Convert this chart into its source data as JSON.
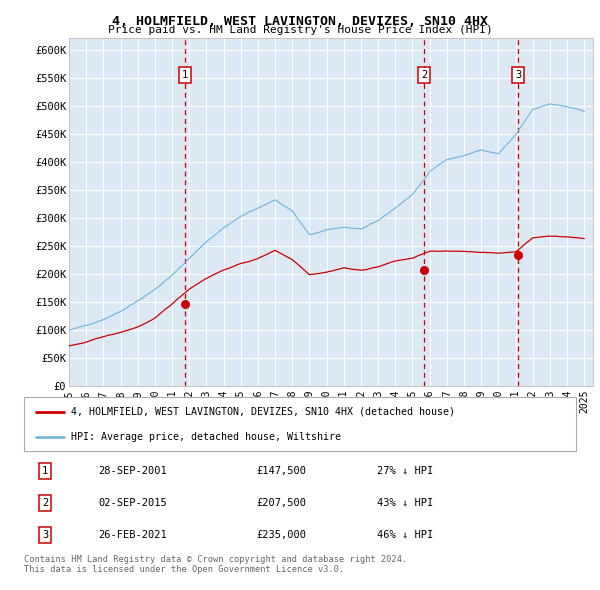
{
  "title1": "4, HOLMFIELD, WEST LAVINGTON, DEVIZES, SN10 4HX",
  "title2": "Price paid vs. HM Land Registry's House Price Index (HPI)",
  "bg_color": "#dce9f5",
  "red_line_label": "4, HOLMFIELD, WEST LAVINGTON, DEVIZES, SN10 4HX (detached house)",
  "blue_line_label": "HPI: Average price, detached house, Wiltshire",
  "sale_points": [
    {
      "label": "1",
      "date_x": 2001.75,
      "price": 147500,
      "date_str": "28-SEP-2001",
      "price_str": "£147,500",
      "pct_str": "27% ↓ HPI"
    },
    {
      "label": "2",
      "date_x": 2015.67,
      "price": 207500,
      "date_str": "02-SEP-2015",
      "price_str": "£207,500",
      "pct_str": "43% ↓ HPI"
    },
    {
      "label": "3",
      "date_x": 2021.15,
      "price": 235000,
      "date_str": "26-FEB-2021",
      "price_str": "£235,000",
      "pct_str": "46% ↓ HPI"
    }
  ],
  "footer1": "Contains HM Land Registry data © Crown copyright and database right 2024.",
  "footer2": "This data is licensed under the Open Government Licence v3.0.",
  "xlim": [
    1995,
    2025.5
  ],
  "ylim": [
    0,
    620000
  ],
  "yticks": [
    0,
    50000,
    100000,
    150000,
    200000,
    250000,
    300000,
    350000,
    400000,
    450000,
    500000,
    550000,
    600000
  ],
  "ytick_labels": [
    "£0",
    "£50K",
    "£100K",
    "£150K",
    "£200K",
    "£250K",
    "£300K",
    "£350K",
    "£400K",
    "£450K",
    "£500K",
    "£550K",
    "£600K"
  ],
  "xticks": [
    1995,
    1996,
    1997,
    1998,
    1999,
    2000,
    2001,
    2002,
    2003,
    2004,
    2005,
    2006,
    2007,
    2008,
    2009,
    2010,
    2011,
    2012,
    2013,
    2014,
    2015,
    2016,
    2017,
    2018,
    2019,
    2020,
    2021,
    2022,
    2023,
    2024,
    2025
  ],
  "hpi_base": [
    100000,
    108000,
    120000,
    135000,
    155000,
    175000,
    200000,
    230000,
    260000,
    285000,
    305000,
    320000,
    335000,
    315000,
    272000,
    280000,
    285000,
    282000,
    295000,
    318000,
    342000,
    382000,
    405000,
    412000,
    422000,
    415000,
    448000,
    492000,
    502000,
    498000,
    490000
  ],
  "red_base": [
    72000,
    78000,
    88000,
    95000,
    105000,
    120000,
    145000,
    172000,
    192000,
    207000,
    218000,
    227000,
    242000,
    226000,
    200000,
    205000,
    213000,
    208000,
    215000,
    225000,
    230000,
    242000,
    241000,
    241000,
    240000,
    238000,
    241000,
    266000,
    269000,
    268000,
    265000
  ],
  "hpi_x": [
    1995,
    1996,
    1997,
    1998,
    1999,
    2000,
    2001,
    2002,
    2003,
    2004,
    2005,
    2006,
    2007,
    2008,
    2009,
    2010,
    2011,
    2012,
    2013,
    2014,
    2015,
    2016,
    2017,
    2018,
    2019,
    2020,
    2021,
    2022,
    2023,
    2024,
    2025
  ]
}
